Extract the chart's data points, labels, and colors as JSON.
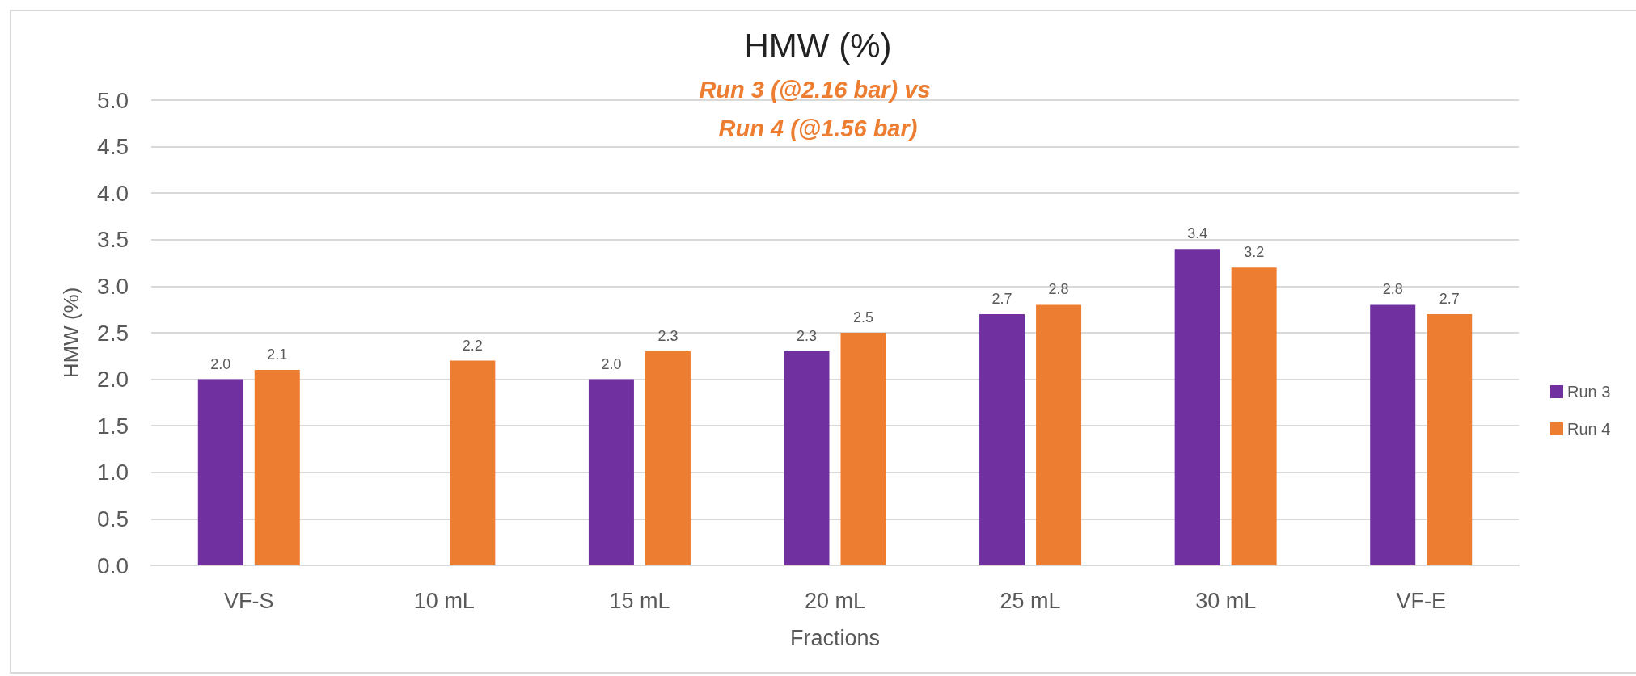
{
  "chart_data": {
    "type": "bar",
    "title": "HMW (%)",
    "subtitle": "Run 3 (@2.16 bar) vs Run 4 (@1.56 bar)",
    "xlabel": "Fractions",
    "ylabel": "HMW (%)",
    "categories": [
      "VF-S",
      "10 mL",
      "15 mL",
      "20 mL",
      "25 mL",
      "30 mL",
      "VF-E"
    ],
    "series": [
      {
        "name": "Run 3",
        "color": "#7030a0",
        "values": [
          2.0,
          null,
          2.0,
          2.3,
          2.7,
          3.4,
          2.8
        ],
        "value_labels": [
          "2.0",
          null,
          "2.0",
          "2.3",
          "2.7",
          "3.4",
          "2.8"
        ]
      },
      {
        "name": "Run 4",
        "color": "#ed7d31",
        "values": [
          2.1,
          2.2,
          2.3,
          2.5,
          2.8,
          3.2,
          2.7
        ],
        "value_labels": [
          "2.1",
          "2.2",
          "2.3",
          "2.5",
          "2.8",
          "3.2",
          "2.7"
        ]
      }
    ],
    "ylim": [
      0,
      5
    ],
    "yticks": [
      {
        "value": 0,
        "label": "0.0"
      },
      {
        "value": 0.5,
        "label": "0.5"
      },
      {
        "value": 1,
        "label": "1.0"
      },
      {
        "value": 1.5,
        "label": "1.5"
      },
      {
        "value": 2,
        "label": "2.0"
      },
      {
        "value": 2.5,
        "label": "2.5"
      },
      {
        "value": 3,
        "label": "3.0"
      },
      {
        "value": 3.5,
        "label": "3.5"
      },
      {
        "value": 4,
        "label": "4.0"
      },
      {
        "value": 4.5,
        "label": "4.5"
      },
      {
        "value": 5,
        "label": "5.0"
      }
    ],
    "grid": "y",
    "legend": "right"
  }
}
